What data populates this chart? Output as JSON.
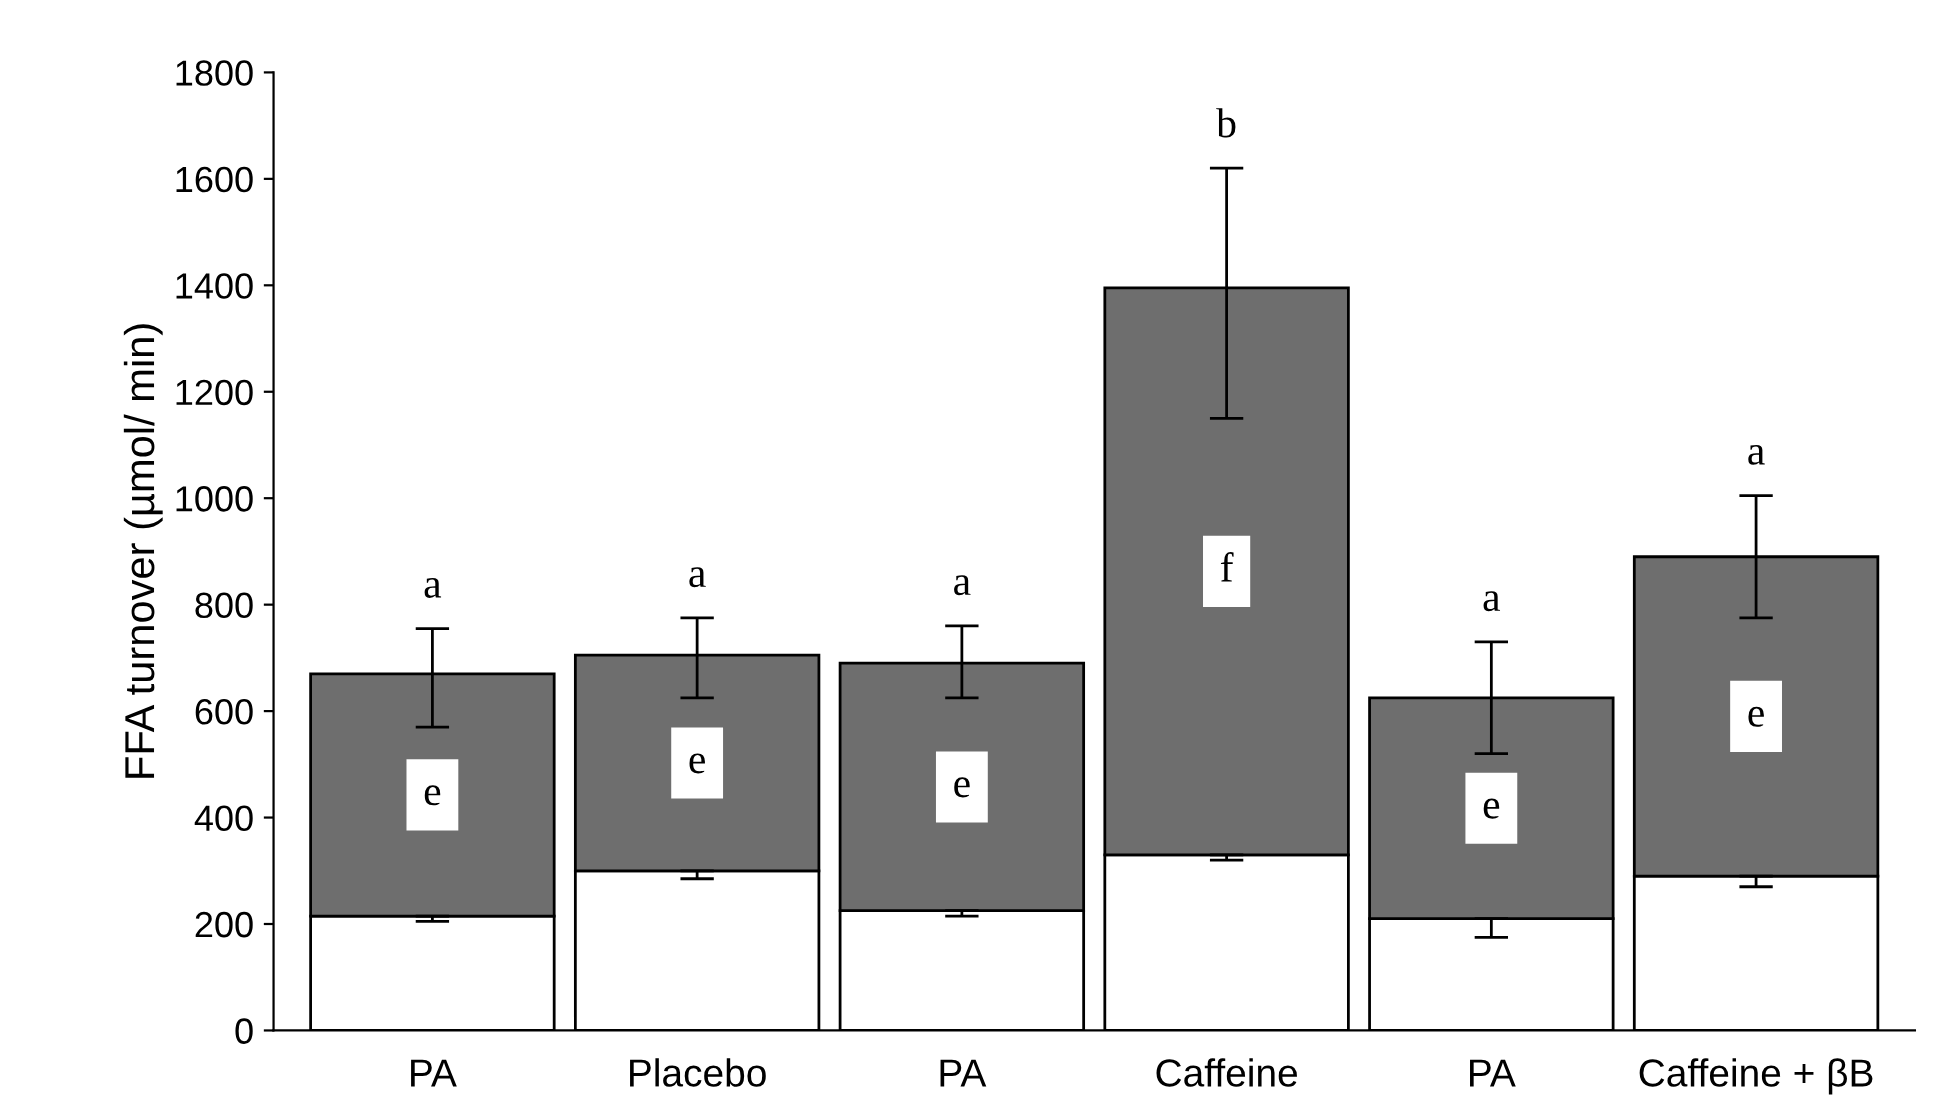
{
  "chart_data": {
    "type": "bar",
    "ylabel": "FFA turnover (µmol/ min)",
    "categories": [
      "PA",
      "Placebo",
      "PA",
      "Caffeine",
      "PA",
      "Caffeine + βB"
    ],
    "stacked": true,
    "series": [
      {
        "color": "#ffffff",
        "values": [
          215,
          300,
          225,
          330,
          210,
          290
        ],
        "errors": [
          [
            205,
            215
          ],
          [
            285,
            300
          ],
          [
            215,
            225
          ],
          [
            320,
            330
          ],
          [
            175,
            210
          ],
          [
            270,
            290
          ]
        ]
      },
      {
        "color": "#6e6e6e",
        "values": [
          455,
          405,
          465,
          1065,
          415,
          600
        ],
        "errors": [
          [
            570,
            755
          ],
          [
            625,
            775
          ],
          [
            625,
            760
          ],
          [
            1150,
            1620
          ],
          [
            520,
            730
          ],
          [
            775,
            1005
          ]
        ],
        "value_labels": [
          "e",
          "e",
          "e",
          "f",
          "e",
          "e"
        ]
      }
    ],
    "annotations": [
      "a",
      "a",
      "a",
      "b",
      "a",
      "a"
    ],
    "ylim": [
      0,
      1800
    ],
    "yticks": [
      0,
      200,
      400,
      600,
      800,
      1000,
      1200,
      1400,
      1600,
      1800
    ],
    "grid": false,
    "legend": false
  }
}
